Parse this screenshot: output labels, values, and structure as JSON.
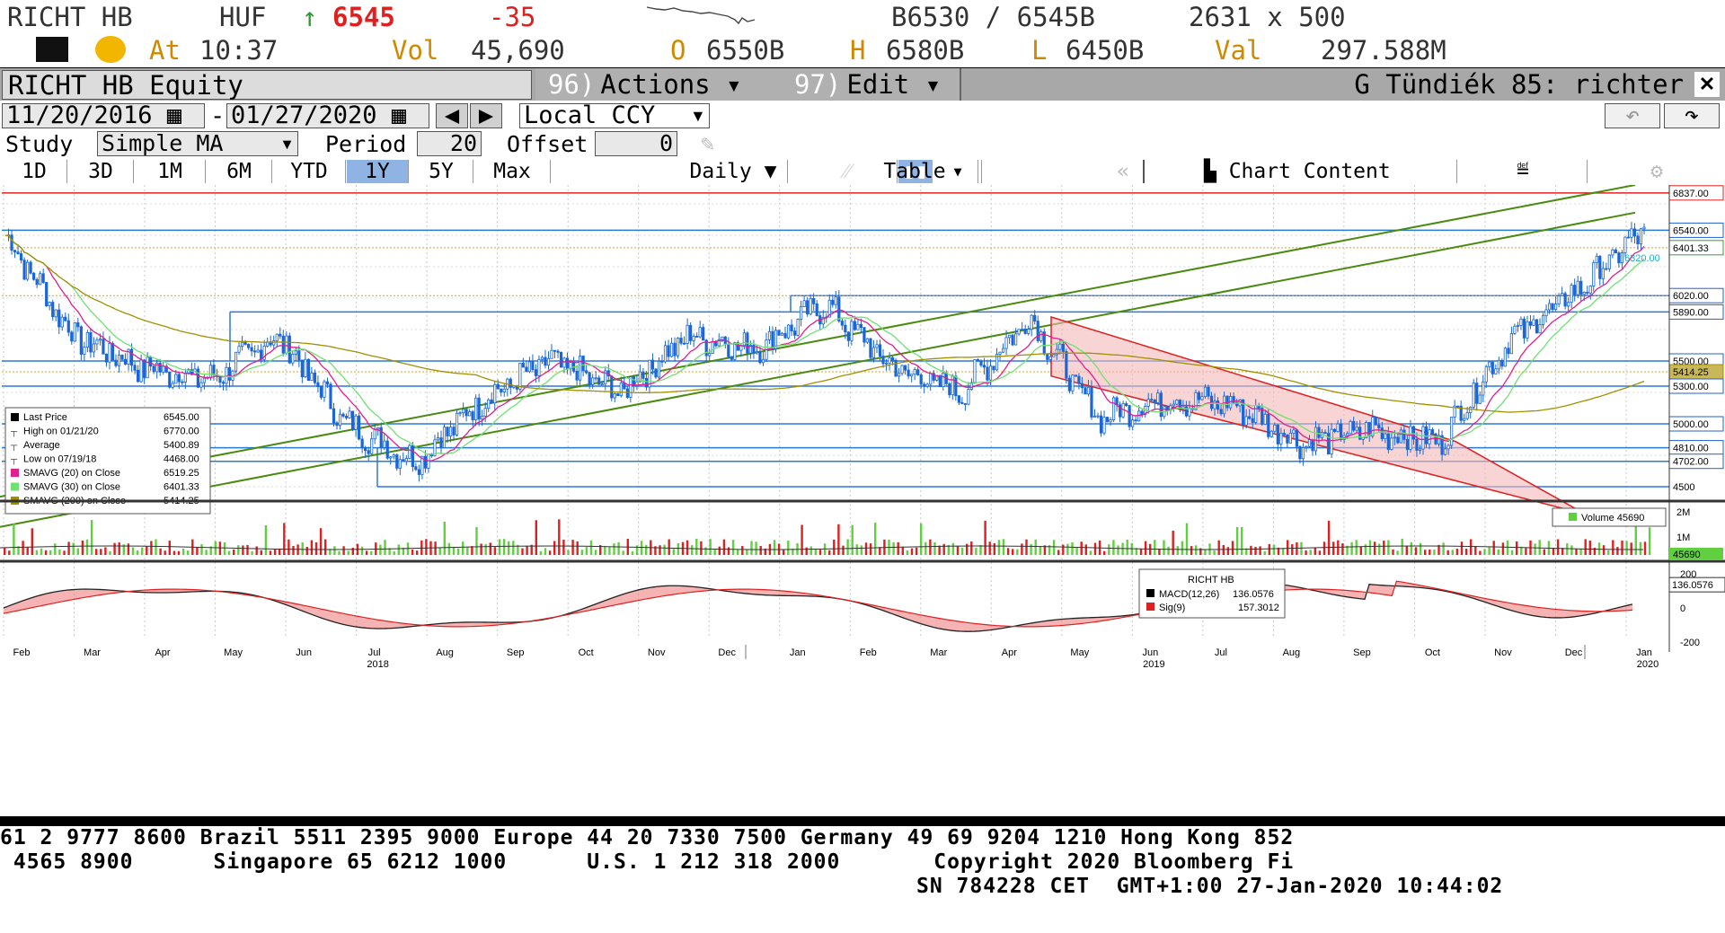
{
  "ticker": {
    "symbol": "RICHT HB",
    "currency": "HUF",
    "arrow": "↑",
    "last": "6545",
    "change": "-35",
    "bid_ask": "B6530 / 6545B",
    "size": "2631 x 500",
    "at_label": "At",
    "time": "10:37",
    "vol_label": "Vol",
    "vol": "45,690",
    "open_label": "O",
    "open": "6550B",
    "high_label": "H",
    "high": "6580B",
    "low_label": "L",
    "low": "6450B",
    "val_label": "Val",
    "val": "297.588M"
  },
  "title_bar": {
    "security": "RICHT HB Equity",
    "actions_num": "96)",
    "actions": "Actions",
    "edit_num": "97)",
    "edit": "Edit",
    "user": "G Tündiék 85: richter"
  },
  "dates": {
    "start": "11/20/2016",
    "sep": "-",
    "end": "01/27/2020",
    "currency_mode": "Local CCY"
  },
  "study": {
    "study_label": "Study",
    "study_value": "Simple MA",
    "period_label": "Period",
    "period_value": "20",
    "offset_label": "Offset",
    "offset_value": "0"
  },
  "range_tabs": [
    "1D",
    "3D",
    "1M",
    "6M",
    "YTD",
    "1Y",
    "5Y",
    "Max"
  ],
  "active_tab": "1Y",
  "toolbar": {
    "frequency": "Daily",
    "table": "Table",
    "chart_content": "Chart Content"
  },
  "price_axis": [
    {
      "label": "6837.00",
      "value": 6837,
      "kind": "tag",
      "color": "#e02020"
    },
    {
      "label": "6540.00",
      "value": 6540,
      "kind": "tag",
      "color": "#2060d0"
    },
    {
      "label": "6401.33",
      "value": 6401.33,
      "kind": "tag",
      "color": "#3c9c3c"
    },
    {
      "label": "6320.00",
      "value": 6320,
      "kind": "float",
      "color": "#20b0c0"
    },
    {
      "label": "6020.00",
      "value": 6020,
      "kind": "tag",
      "color": "#2060d0"
    },
    {
      "label": "5890.00",
      "value": 5890,
      "kind": "tag",
      "color": "#2060d0"
    },
    {
      "label": "5500.00",
      "value": 5500,
      "kind": "tag",
      "color": "#2060d0"
    },
    {
      "label": "5414.25",
      "value": 5414.25,
      "kind": "tag",
      "color": "#a09000"
    },
    {
      "label": "5300.00",
      "value": 5300,
      "kind": "tag",
      "color": "#2060d0"
    },
    {
      "label": "5000.00",
      "value": 5000,
      "kind": "tag",
      "color": "#2060d0"
    },
    {
      "label": "4810.00",
      "value": 4810,
      "kind": "tag",
      "color": "#2060d0"
    },
    {
      "label": "4702.00",
      "value": 4702,
      "kind": "tag",
      "color": "#2060d0"
    },
    {
      "label": "4500",
      "value": 4500,
      "kind": "plain",
      "color": "#000"
    }
  ],
  "legend": [
    {
      "label": "Last Price",
      "value": "6545.00",
      "swatch": "#000000"
    },
    {
      "label": "High on 01/21/20",
      "value": "6770.00",
      "swatch": "none"
    },
    {
      "label": "Average",
      "value": "5400.89",
      "swatch": "none"
    },
    {
      "label": "Low on 07/19/18",
      "value": "4468.00",
      "swatch": "none"
    },
    {
      "label": "SMAVG (20)   on Close",
      "value": "6519.25",
      "swatch": "#e0208c"
    },
    {
      "label": "SMAVG (30)   on Close",
      "value": "6401.33",
      "swatch": "#70e070"
    },
    {
      "label": "SMAVG (200)  on Close",
      "value": "5414.25",
      "swatch": "#a09000"
    }
  ],
  "volume_panel": {
    "legend": "Volume  45690",
    "axis": [
      "2M",
      "1M"
    ],
    "value_tag": "45690"
  },
  "macd_panel": {
    "title": "RICHT HB",
    "macd_label": "MACD(12,26)",
    "macd_value": "136.0576",
    "sig_label": "Sig(9)",
    "sig_value": "157.3012",
    "axis": [
      "200",
      "0",
      "-200"
    ],
    "value_tag": "136.0576"
  },
  "x_axis": {
    "months": [
      "Feb",
      "Mar",
      "Apr",
      "May",
      "Jun",
      "Jul",
      "Aug",
      "Sep",
      "Oct",
      "Nov",
      "Dec",
      "Jan",
      "Feb",
      "Mar",
      "Apr",
      "May",
      "Jun",
      "Jul",
      "Aug",
      "Sep",
      "Oct",
      "Nov",
      "Dec",
      "Jan"
    ],
    "years": [
      "2018",
      "2019",
      "2020"
    ]
  },
  "chart_data": {
    "type": "line",
    "title": "RICHT HB Equity",
    "y_unit": "HUF",
    "ylim": [
      4400,
      6900
    ],
    "horizontal_levels": [
      6837,
      6540,
      6020,
      5890,
      5500,
      5300,
      5000,
      4810,
      4702,
      4500
    ],
    "approx_close_by_month": {
      "x": [
        "2018-01",
        "2018-02",
        "2018-03",
        "2018-04",
        "2018-05",
        "2018-06",
        "2018-07",
        "2018-08",
        "2018-09",
        "2018-10",
        "2018-11",
        "2018-12",
        "2019-01",
        "2019-02",
        "2019-03",
        "2019-04",
        "2019-05",
        "2019-06",
        "2019-07",
        "2019-08",
        "2019-09",
        "2019-10",
        "2019-11",
        "2019-12",
        "2020-01"
      ],
      "y": [
        6500,
        5700,
        5450,
        5350,
        5700,
        5000,
        4700,
        5200,
        5500,
        5250,
        5700,
        5600,
        5950,
        5450,
        5250,
        5850,
        5050,
        5200,
        5150,
        4850,
        4950,
        4850,
        5650,
        6050,
        6545
      ]
    },
    "series": [
      {
        "name": "SMAVG (20) on Close",
        "last": 6519.25
      },
      {
        "name": "SMAVG (30) on Close",
        "last": 6401.33
      },
      {
        "name": "SMAVG (200) on Close",
        "last": 5414.25
      }
    ]
  },
  "footer": {
    "line1": "61 2 9777 8600 Brazil 5511 2395 9000 Europe 44 20 7330 7500 Germany 49 69 9204 1210 Hong Kong 852",
    "line2": " 4565 8900      Singapore 65 6212 1000      U.S. 1 212 318 2000       Copyright 2020 Bloomberg Fi",
    "line3": "SN 784228 CET  GMT+1:00 27-Jan-2020 10:44:02"
  }
}
